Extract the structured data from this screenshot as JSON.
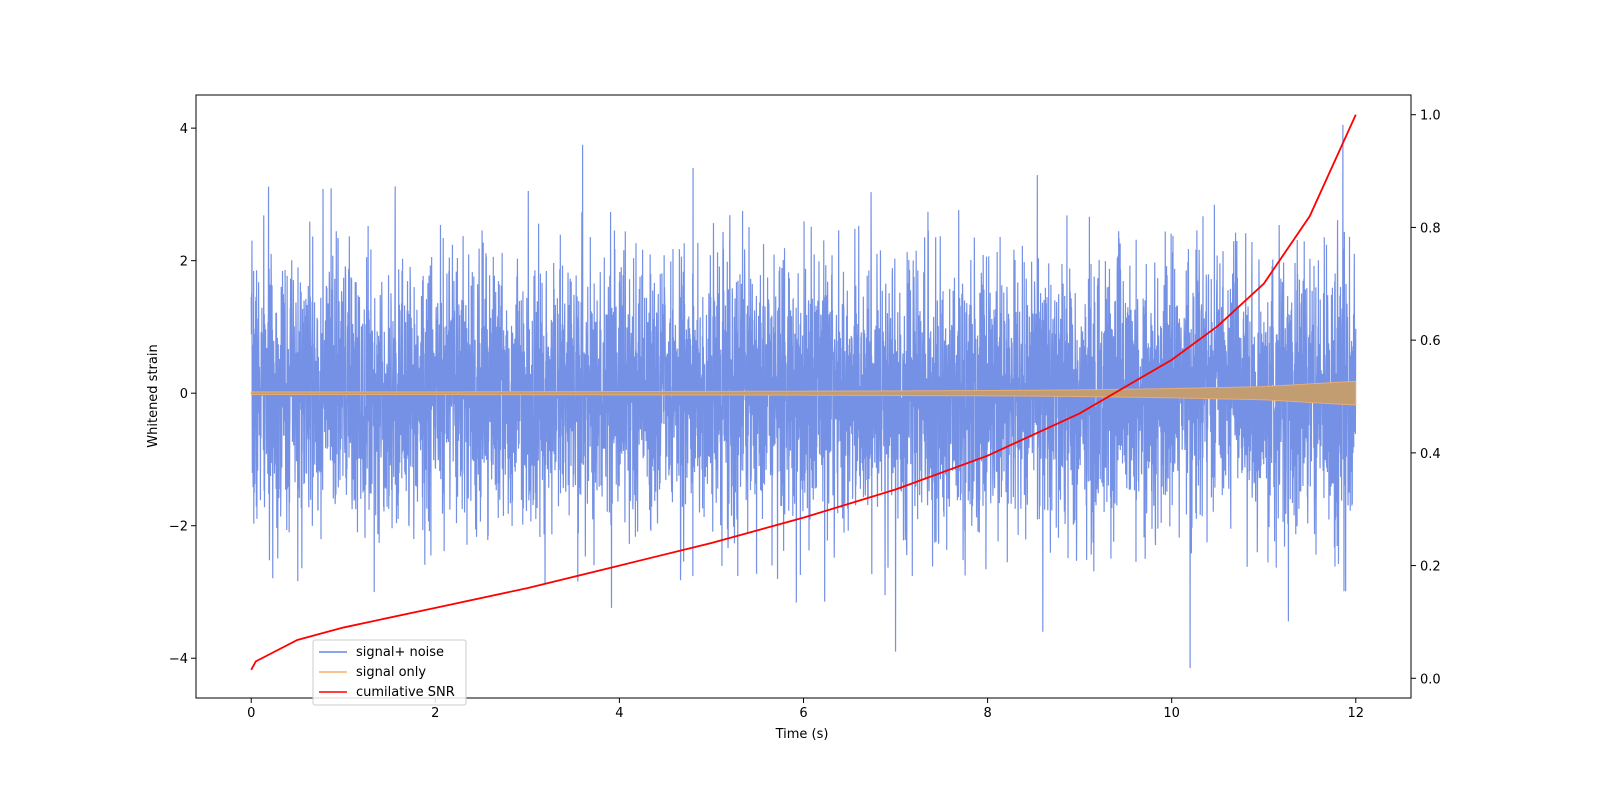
{
  "chart_data": {
    "type": "line",
    "xlabel": "Time (s)",
    "ylabel": "Whitened strain",
    "ylabel_right": "",
    "xlim": [
      -0.6,
      12.6
    ],
    "ylim": [
      -4.6,
      4.5
    ],
    "ylim_right": [
      -0.035,
      1.035
    ],
    "x_ticks": [
      0,
      2,
      4,
      6,
      8,
      10,
      12
    ],
    "y_ticks": [
      -4,
      -2,
      0,
      2,
      4
    ],
    "y_ticks_right": [
      0.0,
      0.2,
      0.4,
      0.6,
      0.8,
      1.0
    ],
    "x_tick_labels": [
      "0",
      "2",
      "4",
      "6",
      "8",
      "10",
      "12"
    ],
    "y_tick_labels": [
      "−4",
      "−2",
      "0",
      "2",
      "4"
    ],
    "y_tick_labels_right": [
      "0.0",
      "0.2",
      "0.4",
      "0.6",
      "0.8",
      "1.0"
    ],
    "grid": false,
    "legend_position": "lower-left",
    "series": [
      {
        "name": "signal+ noise",
        "color": "#6685e3",
        "axis": "left",
        "description_values": {
          "x_range": [
            0,
            12
          ],
          "typical_amplitude": 1.5,
          "max_spike": 4.05,
          "min_spike": -4.15
        }
      },
      {
        "name": "signal only",
        "color": "#f5b26b",
        "axis": "left",
        "envelope": {
          "x": [
            0,
            2,
            4,
            6,
            8,
            9,
            10,
            11,
            12
          ],
          "amplitude": [
            0.02,
            0.02,
            0.025,
            0.03,
            0.04,
            0.05,
            0.07,
            0.1,
            0.18
          ]
        }
      },
      {
        "name": "cumilative SNR",
        "color": "#ff0000",
        "axis": "right",
        "x": [
          0,
          0.05,
          0.5,
          1,
          2,
          3,
          4,
          5,
          6,
          7,
          8,
          9,
          10,
          10.5,
          11,
          11.5,
          12
        ],
        "y": [
          0.015,
          0.03,
          0.068,
          0.09,
          0.125,
          0.16,
          0.2,
          0.24,
          0.285,
          0.335,
          0.395,
          0.47,
          0.565,
          0.625,
          0.7,
          0.82,
          1.0
        ]
      }
    ]
  }
}
